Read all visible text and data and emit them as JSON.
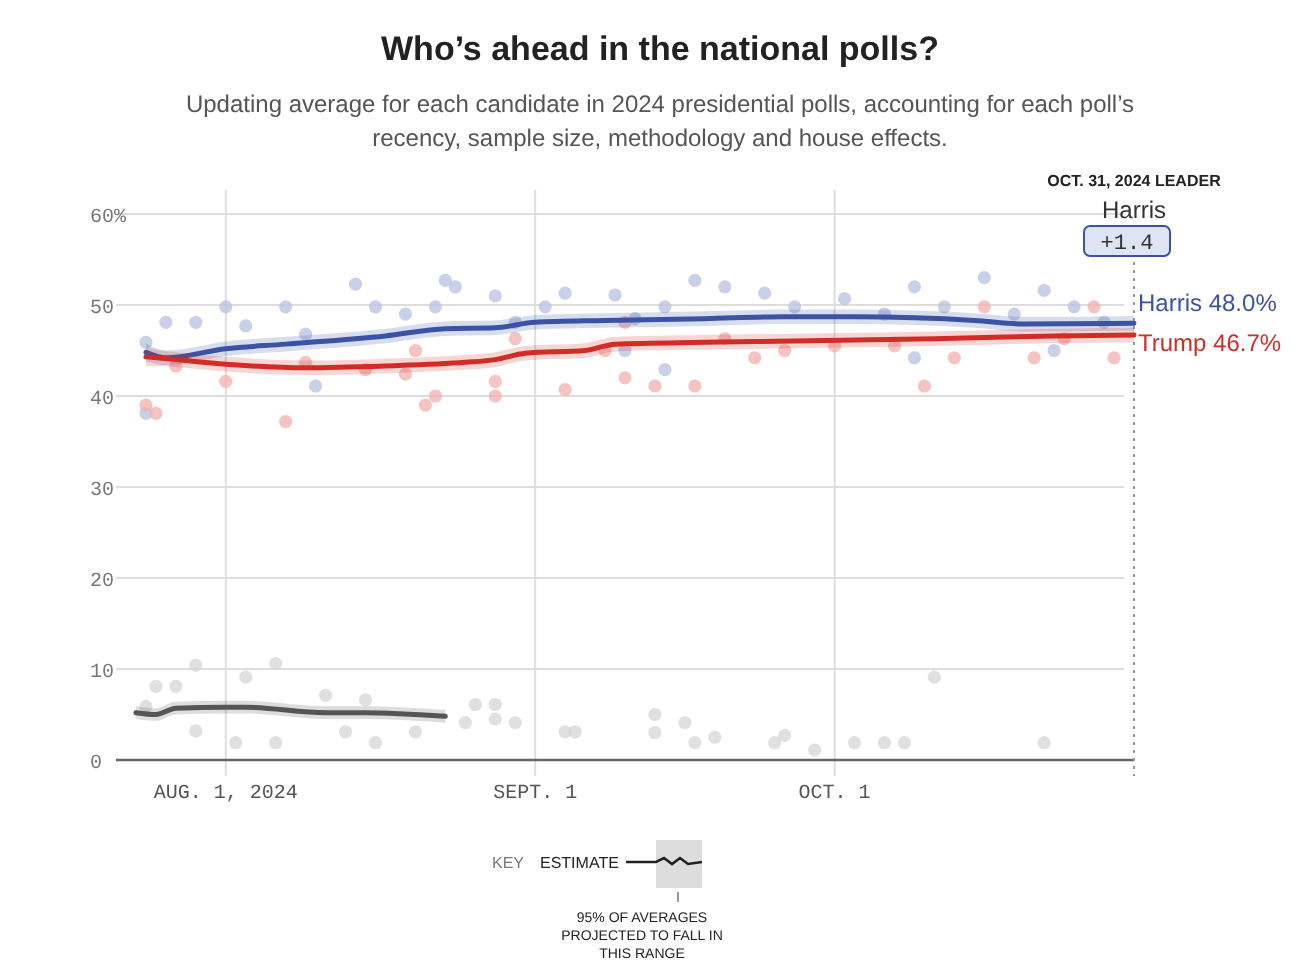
{
  "chart_data": {
    "type": "line",
    "title": "Who’s ahead in the national polls?",
    "subtitle": "Updating average for each candidate in 2024 presidential polls, accounting for each poll’s recency, sample size, methodology and house effects.",
    "xlim": [
      "2024-07-21",
      "2024-10-31"
    ],
    "ylim": [
      0,
      60
    ],
    "xticks": [
      {
        "value": "2024-08-01",
        "label": "AUG. 1, 2024"
      },
      {
        "value": "2024-09-01",
        "label": "SEPT. 1"
      },
      {
        "value": "2024-10-01",
        "label": "OCT. 1"
      }
    ],
    "yticks": [
      0,
      10,
      20,
      30,
      {
        "value": 40,
        "label": "40"
      },
      50,
      {
        "value": 60,
        "label": "60%"
      }
    ],
    "grid": true,
    "line_style": "solid",
    "ref_lines": [
      {
        "axis": "x",
        "value": "2024-10-31",
        "line_style": "dotted",
        "color": "#999999"
      }
    ],
    "annotations": [
      "OCT. 31, 2024 LEADER",
      "Harris",
      "+1.4",
      {
        "text": "Harris 48.0%",
        "x": "2024-10-31",
        "y": 48.0
      },
      {
        "text": "Trump 46.7%",
        "x": "2024-10-31",
        "y": 46.7
      },
      "KEY",
      "ESTIMATE",
      "95% OF AVERAGES PROJECTED TO FALL IN THIS RANGE"
    ],
    "series": [
      {
        "type": "scatter",
        "marker": "circle",
        "color": "#b7c2e2",
        "x": [
          "2024-07-24",
          "2024-07-26",
          "2024-07-29",
          "2024-08-01",
          "2024-08-03",
          "2024-08-07",
          "2024-08-09",
          "2024-08-14",
          "2024-08-16",
          "2024-08-19",
          "2024-08-22",
          "2024-08-23",
          "2024-08-24",
          "2024-08-28",
          "2024-08-30",
          "2024-09-02",
          "2024-09-04",
          "2024-09-09",
          "2024-09-11",
          "2024-09-14",
          "2024-09-17",
          "2024-09-20",
          "2024-09-24",
          "2024-09-27",
          "2024-10-02",
          "2024-10-06",
          "2024-10-09",
          "2024-10-12",
          "2024-10-16",
          "2024-10-19",
          "2024-10-22",
          "2024-10-25",
          "2024-10-28",
          "2024-07-24",
          "2024-08-10",
          "2024-09-14",
          "2024-10-09",
          "2024-10-23",
          "2024-09-10"
        ],
        "values": [
          45.9,
          48.1,
          48.1,
          49.8,
          47.7,
          49.8,
          46.8,
          52.3,
          49.8,
          49.0,
          49.8,
          52.7,
          52.0,
          51.0,
          48.1,
          49.8,
          51.3,
          51.1,
          48.5,
          49.8,
          52.7,
          52.0,
          51.3,
          49.8,
          50.7,
          49.0,
          52.0,
          49.8,
          53.0,
          49.0,
          51.6,
          49.8,
          48.1,
          38.1,
          41.1,
          42.9,
          44.2,
          45.0,
          45.0
        ]
      },
      {
        "type": "scatter",
        "marker": "circle",
        "color": "#f2b0ae",
        "x": [
          "2024-07-24",
          "2024-07-25",
          "2024-07-27",
          "2024-08-01",
          "2024-08-07",
          "2024-08-09",
          "2024-08-15",
          "2024-08-19",
          "2024-08-21",
          "2024-08-22",
          "2024-08-28",
          "2024-08-28",
          "2024-08-30",
          "2024-09-04",
          "2024-09-08",
          "2024-09-10",
          "2024-09-13",
          "2024-09-17",
          "2024-09-20",
          "2024-09-23",
          "2024-09-26",
          "2024-10-01",
          "2024-10-07",
          "2024-10-10",
          "2024-10-13",
          "2024-10-16",
          "2024-10-21",
          "2024-10-24",
          "2024-10-29",
          "2024-10-27",
          "2024-09-10",
          "2024-08-20"
        ],
        "values": [
          39.0,
          38.1,
          43.3,
          41.6,
          37.2,
          43.7,
          42.9,
          42.4,
          39.0,
          40.0,
          41.6,
          40.0,
          46.3,
          40.7,
          45.0,
          42.0,
          41.1,
          41.1,
          46.3,
          44.2,
          45.0,
          45.5,
          45.5,
          41.1,
          44.2,
          49.8,
          44.2,
          46.3,
          44.2,
          49.8,
          48.1,
          45.0
        ]
      },
      {
        "type": "scatter",
        "marker": "circle",
        "color": "#d6d6d6",
        "x": [
          "2024-07-24",
          "2024-07-25",
          "2024-07-27",
          "2024-07-29",
          "2024-07-29",
          "2024-08-02",
          "2024-08-03",
          "2024-08-06",
          "2024-08-06",
          "2024-08-11",
          "2024-08-13",
          "2024-08-15",
          "2024-08-16",
          "2024-08-20",
          "2024-08-25",
          "2024-08-26",
          "2024-08-28",
          "2024-08-28",
          "2024-08-30",
          "2024-09-04",
          "2024-09-05",
          "2024-09-13",
          "2024-09-13",
          "2024-09-16",
          "2024-09-17",
          "2024-09-19",
          "2024-09-25",
          "2024-09-26",
          "2024-09-29",
          "2024-10-03",
          "2024-10-06",
          "2024-10-08",
          "2024-10-11",
          "2024-10-22"
        ],
        "values": [
          5.9,
          8.1,
          8.1,
          10.4,
          3.2,
          1.9,
          9.1,
          10.6,
          1.9,
          7.1,
          3.1,
          6.6,
          1.9,
          3.1,
          4.1,
          6.1,
          6.1,
          4.5,
          4.1,
          3.1,
          3.1,
          5.0,
          3.0,
          4.1,
          1.9,
          2.5,
          1.9,
          2.7,
          1.1,
          1.9,
          1.9,
          1.9,
          9.1,
          1.9
        ]
      },
      {
        "color": "#3a53a4",
        "x": [
          "2024-07-24",
          "2024-07-26",
          "2024-08-01",
          "2024-08-07",
          "2024-08-17",
          "2024-08-23",
          "2024-08-28",
          "2024-09-01",
          "2024-09-08",
          "2024-09-18",
          "2024-09-26",
          "2024-10-03",
          "2024-10-15",
          "2024-10-20",
          "2024-10-31"
        ],
        "values": [
          44.8,
          44.2,
          45.2,
          45.7,
          46.6,
          47.4,
          47.5,
          48.1,
          48.3,
          48.5,
          48.7,
          48.7,
          48.3,
          47.9,
          48.0
        ],
        "lower": [
          43.8,
          43.4,
          44.4,
          44.9,
          45.8,
          46.6,
          46.7,
          47.3,
          47.5,
          47.7,
          47.9,
          47.9,
          47.5,
          47.1,
          47.2
        ],
        "upper": [
          45.8,
          45.0,
          46.0,
          46.5,
          47.4,
          48.2,
          48.3,
          48.9,
          49.1,
          49.3,
          49.5,
          49.5,
          49.1,
          48.7,
          48.8
        ]
      },
      {
        "color": "#d12d26",
        "x": [
          "2024-07-24",
          "2024-07-27",
          "2024-08-01",
          "2024-08-09",
          "2024-08-17",
          "2024-08-25",
          "2024-08-28",
          "2024-08-31",
          "2024-09-06",
          "2024-09-09",
          "2024-09-18",
          "2024-09-30",
          "2024-10-11",
          "2024-10-23",
          "2024-10-31"
        ],
        "values": [
          44.3,
          44.0,
          43.5,
          43.1,
          43.3,
          43.7,
          44.0,
          44.7,
          45.0,
          45.7,
          45.9,
          46.1,
          46.3,
          46.6,
          46.7
        ],
        "lower": [
          43.3,
          43.2,
          42.7,
          42.3,
          42.5,
          42.9,
          43.2,
          43.9,
          44.2,
          44.9,
          45.1,
          45.3,
          45.5,
          45.8,
          45.9
        ],
        "upper": [
          45.3,
          44.8,
          44.3,
          43.9,
          44.1,
          44.5,
          44.8,
          45.5,
          45.8,
          46.5,
          46.7,
          46.9,
          47.1,
          47.4,
          47.5
        ]
      },
      {
        "color": "#555555",
        "x": [
          "2024-07-23",
          "2024-07-25",
          "2024-07-27",
          "2024-08-01",
          "2024-08-03",
          "2024-08-11",
          "2024-08-15",
          "2024-08-23"
        ],
        "values": [
          5.2,
          5.0,
          5.7,
          5.8,
          5.8,
          5.2,
          5.2,
          4.8
        ],
        "lower": [
          4.5,
          4.3,
          5.0,
          5.1,
          5.1,
          4.5,
          4.5,
          4.1
        ],
        "upper": [
          5.9,
          5.7,
          6.4,
          6.5,
          6.5,
          5.9,
          5.9,
          5.5
        ]
      }
    ]
  }
}
